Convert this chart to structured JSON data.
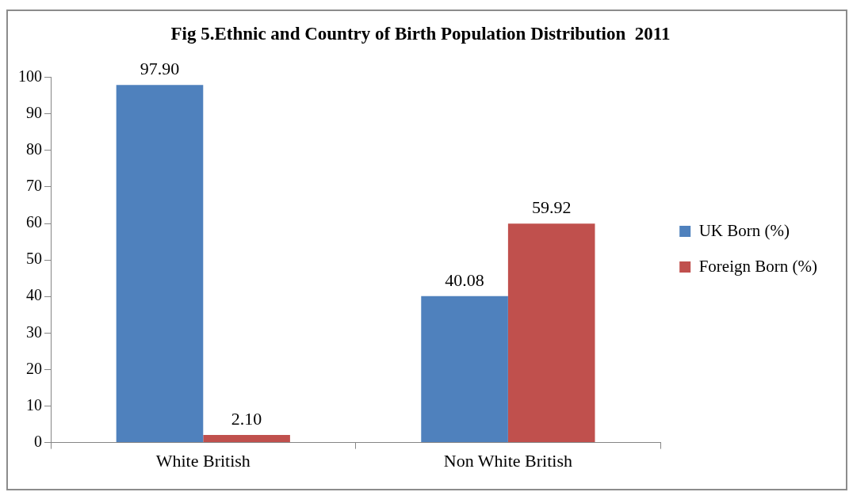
{
  "chart_data": {
    "type": "bar",
    "title": "Fig 5.Ethnic and Country of Birth Population Distribution  2011",
    "categories": [
      "White British",
      "Non White British"
    ],
    "series": [
      {
        "name": "UK Born (%)",
        "color": "#4f81bd",
        "values": [
          97.9,
          40.08
        ],
        "value_labels": [
          "97.90",
          "40.08"
        ]
      },
      {
        "name": "Foreign Born (%)",
        "color": "#c0504d",
        "values": [
          2.1,
          59.92
        ],
        "value_labels": [
          "2.10",
          "59.92"
        ]
      }
    ],
    "ylim": [
      0,
      100
    ],
    "yticks": [
      0,
      10,
      20,
      30,
      40,
      50,
      60,
      70,
      80,
      90,
      100
    ],
    "grid": false,
    "legend": "right"
  }
}
